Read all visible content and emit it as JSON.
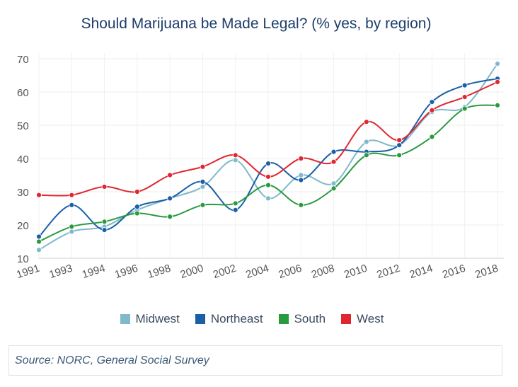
{
  "chart_data": {
    "type": "line",
    "title": "Should Marijuana be Made Legal? (% yes, by region)",
    "categories": [
      "1991",
      "1993",
      "1994",
      "1996",
      "1998",
      "2000",
      "2002",
      "2004",
      "2006",
      "2008",
      "2010",
      "2012",
      "2014",
      "2016",
      "2018"
    ],
    "ylim": [
      10,
      70
    ],
    "yticks": [
      10,
      20,
      30,
      40,
      50,
      60,
      70
    ],
    "grid": true,
    "legend_position": "bottom",
    "series": [
      {
        "name": "Midwest",
        "color": "#7fb9cc",
        "values": [
          12.5,
          18,
          19.5,
          24.5,
          28,
          31.5,
          39.5,
          28,
          35,
          32.5,
          45,
          44,
          54,
          55.5,
          68.5
        ]
      },
      {
        "name": "Northeast",
        "color": "#1a5fa8",
        "values": [
          16.5,
          26,
          18.5,
          25.5,
          28,
          33,
          24.5,
          38.5,
          33.5,
          42,
          42,
          44,
          57,
          62,
          64
        ]
      },
      {
        "name": "South",
        "color": "#2a9a3f",
        "values": [
          15,
          19.5,
          21,
          23.5,
          22.5,
          26,
          26.5,
          32,
          26,
          31,
          41,
          41,
          46.5,
          55,
          56
        ]
      },
      {
        "name": "West",
        "color": "#e0262e",
        "values": [
          29,
          29,
          31.5,
          30,
          35,
          37.5,
          41,
          34.5,
          40,
          39,
          51,
          45.5,
          54.5,
          58.5,
          63
        ]
      }
    ]
  },
  "source": "Source: NORC, General Social Survey"
}
